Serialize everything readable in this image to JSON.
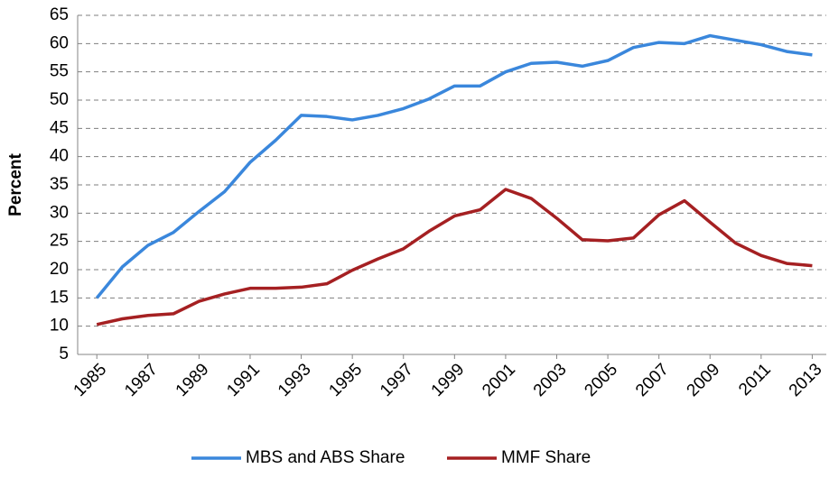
{
  "chart_data": {
    "type": "line",
    "y_label": "Percent",
    "x": [
      1985,
      1986,
      1987,
      1988,
      1989,
      1990,
      1991,
      1992,
      1993,
      1994,
      1995,
      1996,
      1997,
      1998,
      1999,
      2000,
      2001,
      2002,
      2003,
      2004,
      2005,
      2006,
      2007,
      2008,
      2009,
      2010,
      2011,
      2012,
      2013
    ],
    "series": [
      {
        "name": "MBS and ABS Share",
        "color": "#3a87dc",
        "values": [
          15.0,
          20.5,
          24.3,
          26.6,
          30.3,
          33.8,
          39.0,
          42.9,
          47.3,
          47.1,
          46.5,
          47.3,
          48.5,
          50.2,
          52.5,
          52.5,
          55.0,
          56.5,
          56.7,
          56.0,
          57.0,
          59.3,
          60.2,
          60.0,
          61.4,
          60.6,
          59.8,
          58.6,
          58.0
        ]
      },
      {
        "name": "MMF Share",
        "color": "#a52022",
        "values": [
          10.3,
          11.3,
          11.9,
          12.2,
          14.4,
          15.7,
          16.7,
          16.7,
          16.9,
          17.5,
          19.9,
          21.9,
          23.7,
          26.8,
          29.5,
          30.6,
          34.2,
          32.6,
          29.1,
          25.3,
          25.1,
          25.6,
          29.7,
          32.2,
          28.4,
          24.7,
          22.5,
          21.1,
          20.7
        ]
      }
    ],
    "xlim": [
      1984.25,
      2013.55
    ],
    "xticks": [
      1985,
      1987,
      1989,
      1991,
      1993,
      1995,
      1997,
      1999,
      2001,
      2003,
      2005,
      2007,
      2009,
      2011,
      2013
    ],
    "ylim": [
      5,
      65
    ],
    "yticks": [
      5,
      10,
      15,
      20,
      25,
      30,
      35,
      40,
      45,
      50,
      55,
      60,
      65
    ],
    "grid": true,
    "legend": "bottom"
  }
}
